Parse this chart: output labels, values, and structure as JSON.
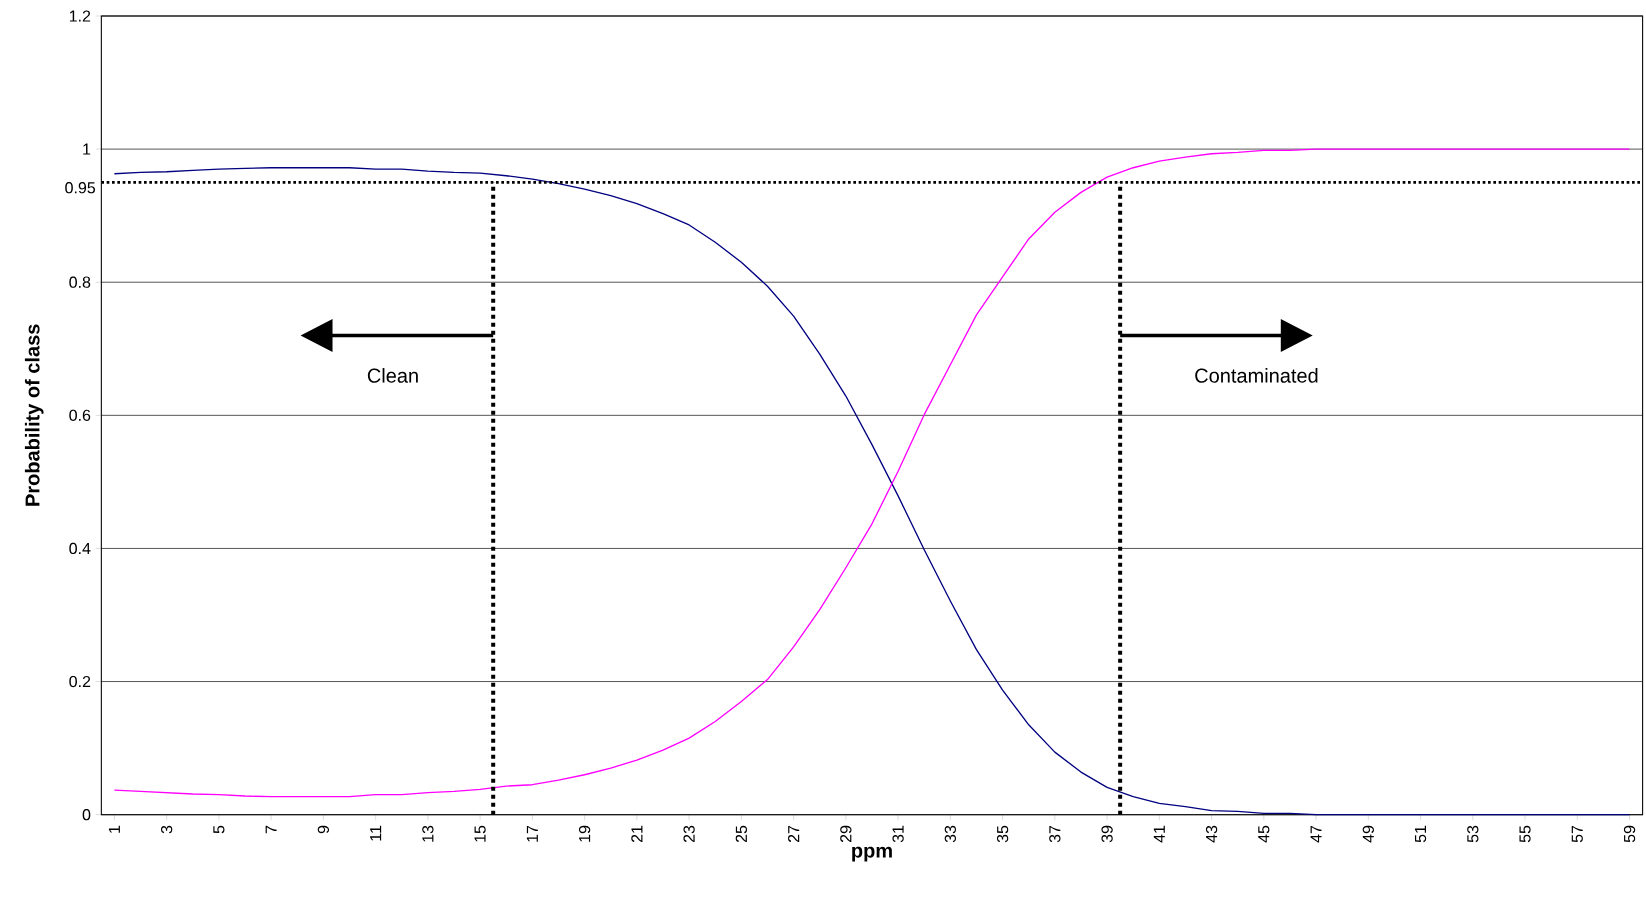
{
  "chart_data": {
    "type": "line",
    "xlabel": "ppm",
    "ylabel": "Probability of class",
    "x": [
      1,
      2,
      3,
      4,
      5,
      6,
      7,
      8,
      9,
      10,
      11,
      12,
      13,
      14,
      15,
      16,
      17,
      18,
      19,
      20,
      21,
      22,
      23,
      24,
      25,
      26,
      27,
      28,
      29,
      30,
      31,
      32,
      33,
      34,
      35,
      36,
      37,
      38,
      39,
      40,
      41,
      42,
      43,
      44,
      45,
      46,
      47,
      48,
      49,
      50,
      51,
      52,
      53,
      54,
      55,
      56,
      57,
      58,
      59
    ],
    "xlim": [
      0.5,
      59.5
    ],
    "xticks": [
      1,
      3,
      5,
      7,
      9,
      11,
      13,
      15,
      17,
      19,
      21,
      23,
      25,
      27,
      29,
      31,
      33,
      35,
      37,
      39,
      41,
      43,
      45,
      47,
      49,
      51,
      53,
      55,
      57,
      59
    ],
    "ylim": [
      0,
      1.2
    ],
    "yticks": [
      0,
      0.2,
      0.4,
      0.6,
      0.8,
      1,
      1.2
    ],
    "grid": "y",
    "marker": "none",
    "series": [
      {
        "color": "#000080",
        "values": [
          0.963,
          0.965,
          0.966,
          0.968,
          0.97,
          0.971,
          0.972,
          0.972,
          0.972,
          0.972,
          0.97,
          0.97,
          0.967,
          0.965,
          0.964,
          0.96,
          0.955,
          0.948,
          0.94,
          0.93,
          0.918,
          0.903,
          0.886,
          0.86,
          0.83,
          0.794,
          0.749,
          0.692,
          0.629,
          0.556,
          0.479,
          0.398,
          0.321,
          0.248,
          0.187,
          0.135,
          0.094,
          0.064,
          0.041,
          0.027,
          0.017,
          0.012,
          0.006,
          0.005,
          0.002,
          0.002,
          0,
          0,
          0,
          0,
          0,
          0,
          0,
          0,
          0,
          0,
          0,
          0,
          0
        ]
      },
      {
        "color": "#ff00ff",
        "values": [
          0.037,
          0.035,
          0.033,
          0.031,
          0.03,
          0.028,
          0.027,
          0.027,
          0.027,
          0.027,
          0.03,
          0.03,
          0.033,
          0.035,
          0.038,
          0.043,
          0.045,
          0.052,
          0.06,
          0.07,
          0.082,
          0.097,
          0.115,
          0.14,
          0.17,
          0.203,
          0.252,
          0.308,
          0.371,
          0.437,
          0.516,
          0.601,
          0.676,
          0.751,
          0.808,
          0.865,
          0.905,
          0.935,
          0.958,
          0.972,
          0.982,
          0.988,
          0.993,
          0.995,
          0.998,
          0.998,
          1,
          1,
          1,
          1,
          1,
          1,
          1,
          1,
          1,
          1,
          1,
          1,
          1
        ]
      }
    ],
    "ref_lines": [
      {
        "axis": "y",
        "value": 0.95,
        "label": "0.95",
        "color": "#000000",
        "line_style": "dotted"
      },
      {
        "axis": "x",
        "value": 15.5,
        "color": "#000000",
        "line_style": "dotted"
      },
      {
        "axis": "x",
        "value": 39.5,
        "color": "#000000",
        "line_style": "dotted"
      }
    ],
    "annotations": [
      "Clean",
      "Contaminated"
    ]
  }
}
